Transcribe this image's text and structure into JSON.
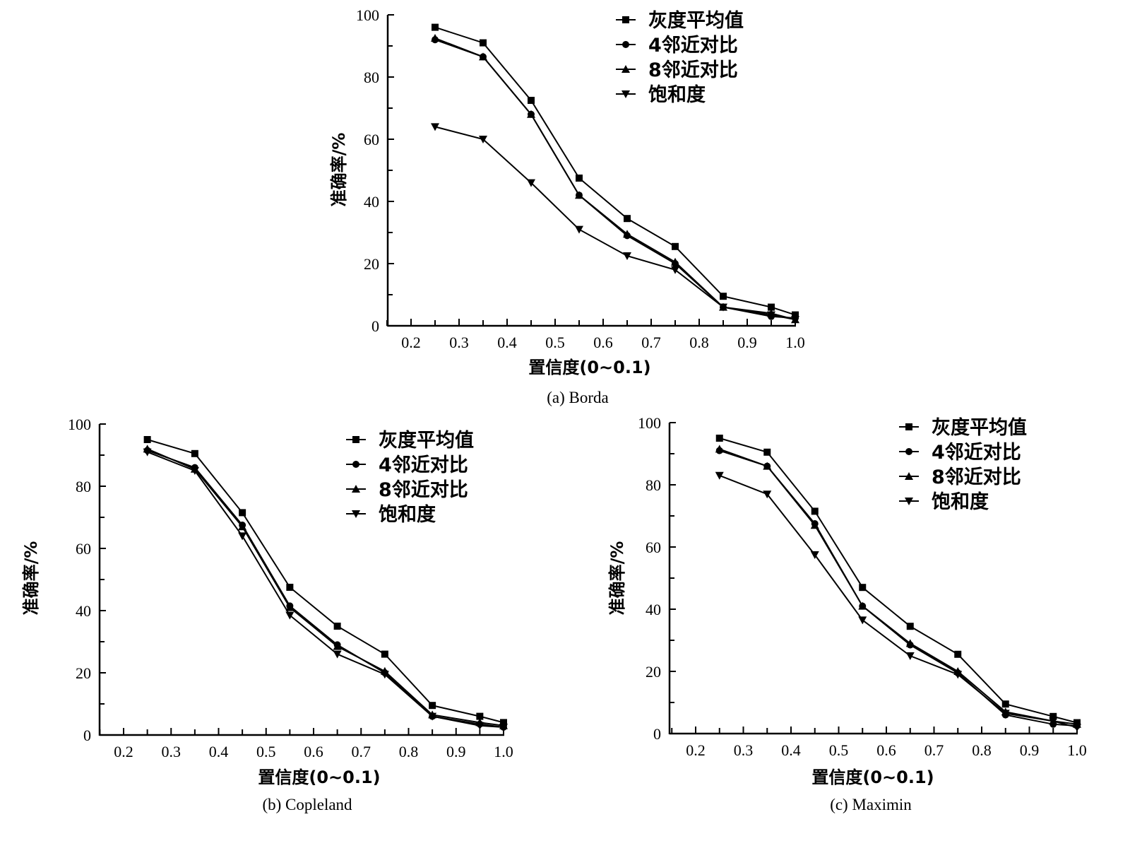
{
  "chart_data": [
    {
      "type": "line",
      "caption": "(a)  Borda",
      "xlabel": "置信度(0~0.1)",
      "ylabel": "准确率/%",
      "xlim": [
        0.15,
        1.0
      ],
      "ylim": [
        0,
        100
      ],
      "xticks": [
        "0.2",
        "0.3",
        "0.4",
        "0.5",
        "0.6",
        "0.7",
        "0.8",
        "0.9",
        "1.0"
      ],
      "yticks": [
        "0",
        "20",
        "40",
        "60",
        "80",
        "100"
      ],
      "legend_position": "top-right",
      "x": [
        0.25,
        0.35,
        0.45,
        0.55,
        0.65,
        0.75,
        0.85,
        0.95,
        1.0
      ],
      "series": [
        {
          "name": "灰度平均值",
          "marker": "square",
          "values": [
            96,
            91,
            72.5,
            47.5,
            34.5,
            25.5,
            9.5,
            6,
            3.5
          ]
        },
        {
          "name": "4邻近对比",
          "marker": "circle",
          "values": [
            92,
            86.5,
            68,
            42,
            29,
            20,
            6,
            3,
            2.5
          ]
        },
        {
          "name": "8邻近对比",
          "marker": "triangle-up",
          "values": [
            92.5,
            86.5,
            68,
            42,
            29.5,
            20.5,
            6,
            4,
            2
          ]
        },
        {
          "name": "饱和度",
          "marker": "triangle-down",
          "values": [
            64,
            60,
            46,
            31,
            22.5,
            18,
            6,
            3.5,
            2
          ]
        }
      ]
    },
    {
      "type": "line",
      "caption": "(b)  Copleland",
      "xlabel": "置信度(0~0.1)",
      "ylabel": "准确率/%",
      "xlim": [
        0.15,
        1.0
      ],
      "ylim": [
        0,
        100
      ],
      "xticks": [
        "0.2",
        "0.3",
        "0.4",
        "0.5",
        "0.6",
        "0.7",
        "0.8",
        "0.9",
        "1.0"
      ],
      "yticks": [
        "0",
        "20",
        "40",
        "60",
        "80",
        "100"
      ],
      "legend_position": "top-right",
      "x": [
        0.25,
        0.35,
        0.45,
        0.55,
        0.65,
        0.75,
        0.85,
        0.95,
        1.0
      ],
      "series": [
        {
          "name": "灰度平均值",
          "marker": "square",
          "values": [
            95,
            90.5,
            71.5,
            47.5,
            35,
            26,
            9.5,
            6,
            4
          ]
        },
        {
          "name": "4邻近对比",
          "marker": "circle",
          "values": [
            91.5,
            86,
            67.5,
            41.5,
            29,
            20,
            6,
            3.5,
            2.5
          ]
        },
        {
          "name": "8邻近对比",
          "marker": "triangle-up",
          "values": [
            92,
            85.5,
            67,
            41,
            28.5,
            20.5,
            6.5,
            4,
            3
          ]
        },
        {
          "name": "饱和度",
          "marker": "triangle-down",
          "values": [
            91,
            85,
            64,
            38.5,
            26,
            19.5,
            6,
            3,
            2.5
          ]
        }
      ]
    },
    {
      "type": "line",
      "caption": "(c)  Maximin",
      "xlabel": "置信度(0~0.1)",
      "ylabel": "准确率/%",
      "xlim": [
        0.15,
        1.0
      ],
      "ylim": [
        0,
        100
      ],
      "xticks": [
        "0.2",
        "0.3",
        "0.4",
        "0.5",
        "0.6",
        "0.7",
        "0.8",
        "0.9",
        "1.0"
      ],
      "yticks": [
        "0",
        "20",
        "40",
        "60",
        "80",
        "100"
      ],
      "legend_position": "top-right",
      "x": [
        0.25,
        0.35,
        0.45,
        0.55,
        0.65,
        0.75,
        0.85,
        0.95,
        1.0
      ],
      "series": [
        {
          "name": "灰度平均值",
          "marker": "square",
          "values": [
            95,
            90.5,
            71.5,
            47,
            34.5,
            25.5,
            9.5,
            5.5,
            3.5
          ]
        },
        {
          "name": "4邻近对比",
          "marker": "circle",
          "values": [
            91,
            86,
            67.5,
            41,
            28.5,
            19.5,
            6,
            3,
            2.5
          ]
        },
        {
          "name": "8邻近对比",
          "marker": "triangle-up",
          "values": [
            91.5,
            86,
            67,
            41,
            29,
            20,
            7,
            4,
            3
          ]
        },
        {
          "name": "饱和度",
          "marker": "triangle-down",
          "values": [
            83,
            77,
            57.5,
            36.5,
            25,
            19,
            6.5,
            4,
            2
          ]
        }
      ]
    }
  ]
}
